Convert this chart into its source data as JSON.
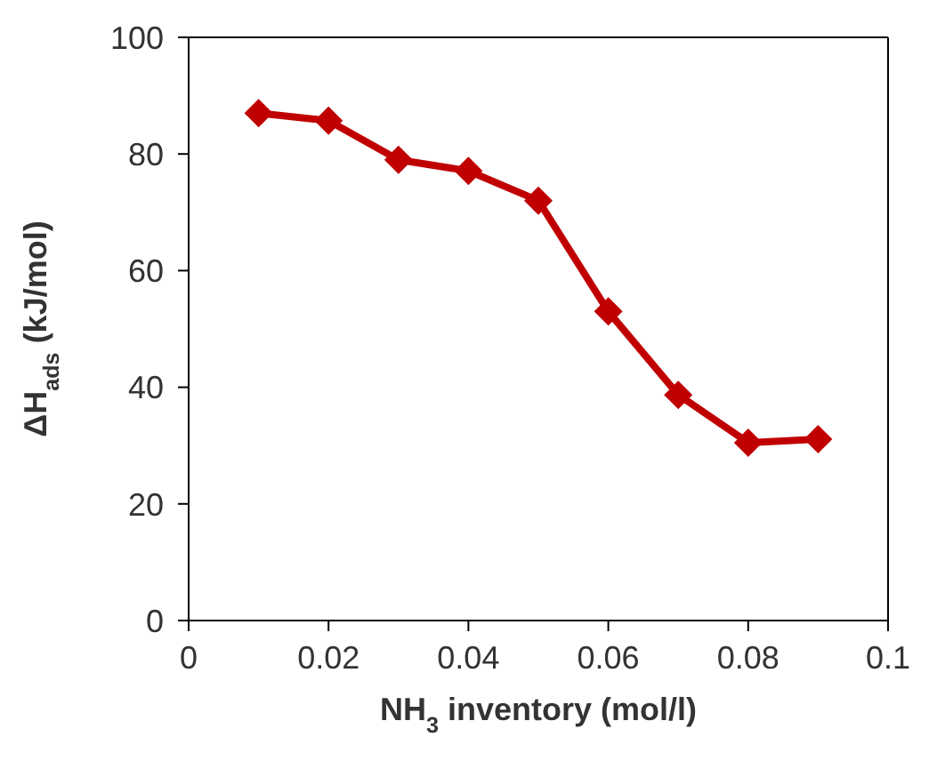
{
  "chart_data": {
    "type": "line",
    "xlabel": "NH$_{3}$ inventory (mol/l)",
    "ylabel": "ΔH$_{ads}$ (kJ/mol)",
    "x": [
      0.01,
      0.02,
      0.03,
      0.04,
      0.05,
      0.06,
      0.07,
      0.08,
      0.09
    ],
    "series": [
      {
        "color": "#c00000",
        "values": [
          87,
          85.7,
          79,
          77.1,
          72,
          53,
          38.7,
          30.5,
          31.1
        ]
      }
    ],
    "xlim": [
      0,
      0.1
    ],
    "xticks": [
      0,
      0.02,
      0.04,
      0.06,
      0.08,
      0.1
    ],
    "ylim": [
      0,
      100
    ],
    "yticks": [
      0,
      20,
      40,
      60,
      80,
      100
    ],
    "marker": "diamond",
    "line_style": "solid",
    "grid": false,
    "legend": false
  }
}
